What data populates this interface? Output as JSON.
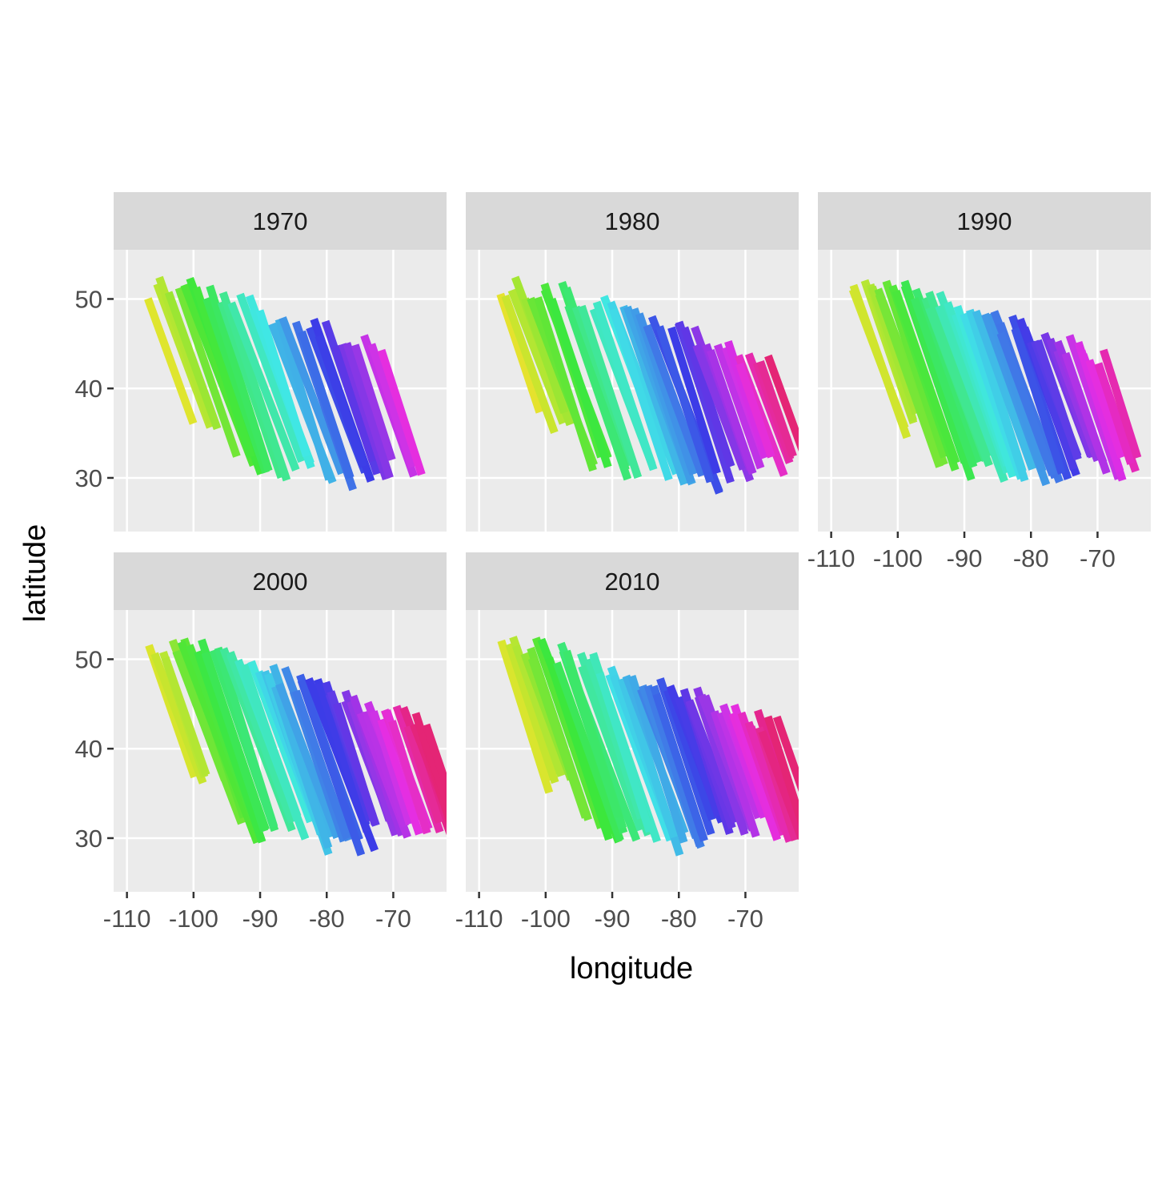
{
  "chart_data": {
    "type": "line",
    "facet_by": "year",
    "layout": "3 columns x 2 rows, facets filled left-to-right",
    "panels": [
      {
        "label": "1970"
      },
      {
        "label": "1980"
      },
      {
        "label": "1990"
      },
      {
        "label": "2000"
      },
      {
        "label": "2010"
      }
    ],
    "xlabel": "longitude",
    "ylabel": "latitude",
    "xlim": [
      -112,
      -62
    ],
    "ylim": [
      24,
      55.5
    ],
    "x_ticks": [
      -110,
      -100,
      -90,
      -80,
      -70
    ],
    "x_tick_labels": [
      "-110",
      "-100",
      "-90",
      "-80",
      "-70"
    ],
    "y_ticks": [
      30,
      40,
      50
    ],
    "y_tick_labels": [
      "30",
      "40",
      "50"
    ],
    "grid": true,
    "legend": "none",
    "color_mapping": "hue by longitude (west orange to east pink)",
    "colors": {
      "panel_background": "#ebebeb",
      "strip_background": "#d9d9d9",
      "grid": "#ffffff",
      "text": "#4d4d4d"
    }
  }
}
